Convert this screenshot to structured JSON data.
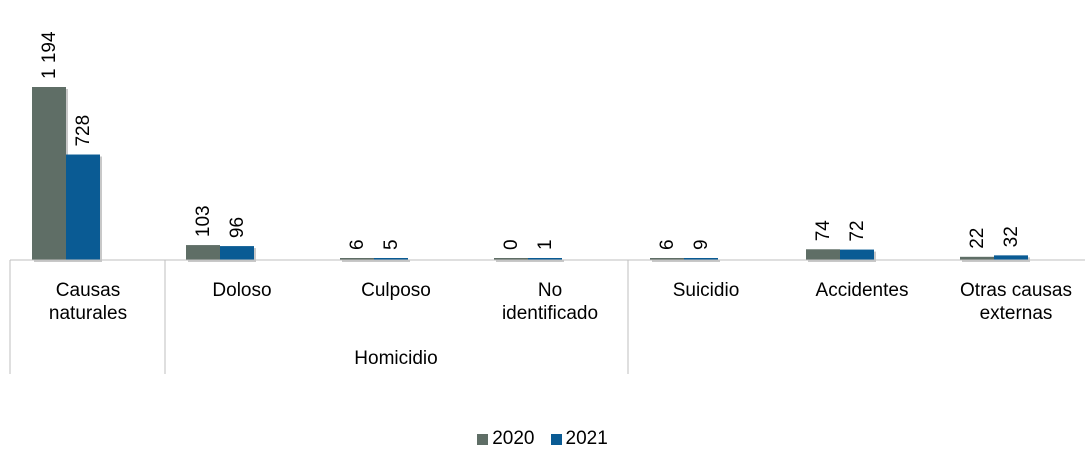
{
  "chart_data": {
    "type": "bar",
    "categories": [
      [
        "Causas",
        "naturales"
      ],
      [
        "Doloso"
      ],
      [
        "Culposo"
      ],
      [
        "No",
        "identificado"
      ],
      [
        "Suicidio"
      ],
      [
        "Accidentes"
      ],
      [
        "Otras causas",
        "externas"
      ]
    ],
    "group_label": "Homicidio",
    "series": [
      {
        "name": "2020",
        "color": "#5f6e66",
        "values": [
          1194,
          103,
          6,
          0,
          6,
          74,
          22
        ],
        "labels": [
          "1 194",
          "103",
          "6",
          "0",
          "6",
          "74",
          "22"
        ]
      },
      {
        "name": "2021",
        "color": "#0a5b94",
        "values": [
          728,
          96,
          5,
          1,
          9,
          72,
          32
        ],
        "labels": [
          "728",
          "96",
          "5",
          "1",
          "9",
          "72",
          "32"
        ]
      }
    ],
    "ylim": [
      0,
      1194
    ],
    "legend": "bottom-center",
    "grid": false
  }
}
